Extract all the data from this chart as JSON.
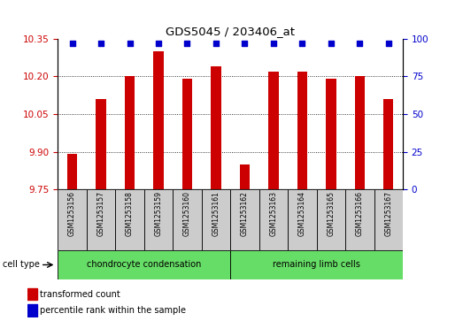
{
  "title": "GDS5045 / 203406_at",
  "samples": [
    "GSM1253156",
    "GSM1253157",
    "GSM1253158",
    "GSM1253159",
    "GSM1253160",
    "GSM1253161",
    "GSM1253162",
    "GSM1253163",
    "GSM1253164",
    "GSM1253165",
    "GSM1253166",
    "GSM1253167"
  ],
  "transformed_count": [
    9.89,
    10.11,
    10.2,
    10.3,
    10.19,
    10.24,
    9.85,
    10.22,
    10.22,
    10.19,
    10.2,
    10.11
  ],
  "percentile_rank": [
    97,
    97,
    97,
    97,
    97,
    97,
    97,
    97,
    97,
    97,
    97,
    97
  ],
  "ylim_left": [
    9.75,
    10.35
  ],
  "yticks_left": [
    9.75,
    9.9,
    10.05,
    10.2,
    10.35
  ],
  "yticks_right": [
    0,
    25,
    50,
    75,
    100
  ],
  "ylim_right": [
    0,
    100
  ],
  "bar_color": "#cc0000",
  "dot_color": "#0000cc",
  "group1_label": "chondrocyte condensation",
  "group2_label": "remaining limb cells",
  "group_color": "#66dd66",
  "cell_type_label": "cell type",
  "legend_bar_label": "transformed count",
  "legend_dot_label": "percentile rank within the sample",
  "grid_color": "#000000",
  "tick_color_left": "#cc0000",
  "tick_color_right": "#0000cc",
  "label_bg_color": "#cccccc",
  "bar_width": 0.35
}
